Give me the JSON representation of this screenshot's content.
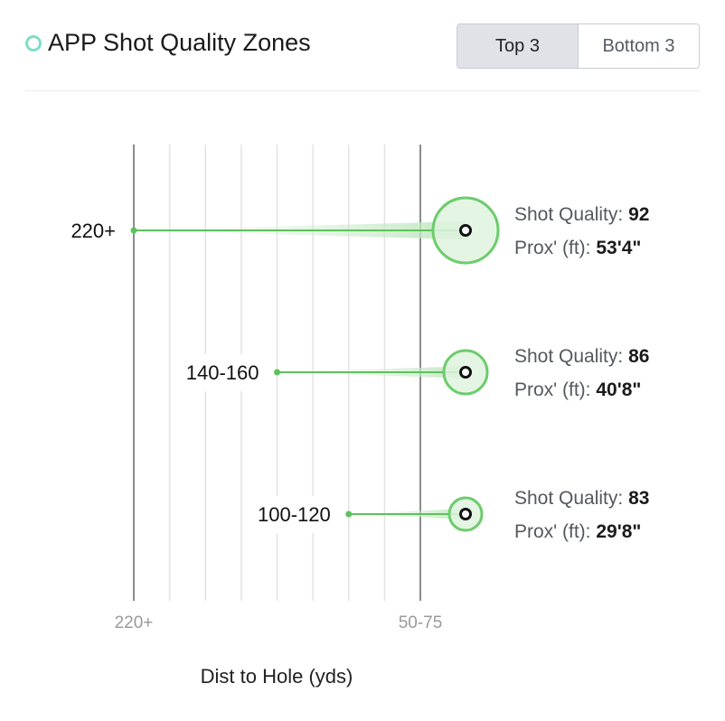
{
  "header": {
    "title": "APP Shot Quality Zones",
    "icon": "circle-outline-icon",
    "toggle": [
      "Top 3",
      "Bottom 3"
    ],
    "active_toggle": "Top 3"
  },
  "colors": {
    "accent": "#7fdcc9",
    "line": "#5cc25c",
    "circle_fill": "#dff3df",
    "circle_stroke": "#6ccc6c"
  },
  "chart_data": {
    "type": "scatter",
    "xlabel": "Dist to Hole (yds)",
    "x_ticks": [
      "220+",
      "50-75"
    ],
    "grid": true,
    "series": [
      {
        "category": "220+",
        "shot_quality_label": "Shot Quality:",
        "shot_quality": 92,
        "prox_label": "Prox' (ft):",
        "prox": "53'4\""
      },
      {
        "category": "140-160",
        "shot_quality_label": "Shot Quality:",
        "shot_quality": 86,
        "prox_label": "Prox' (ft):",
        "prox": "40'8\""
      },
      {
        "category": "100-120",
        "shot_quality_label": "Shot Quality:",
        "shot_quality": 83,
        "prox_label": "Prox' (ft):",
        "prox": "29'8\""
      }
    ]
  }
}
